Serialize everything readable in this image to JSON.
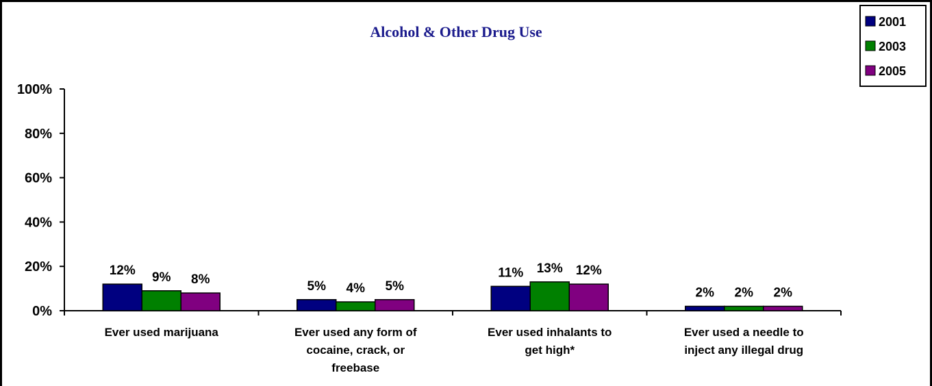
{
  "chart_data": {
    "type": "bar",
    "title": "Alcohol & Other Drug Use",
    "categories": [
      [
        "Ever used marijuana"
      ],
      [
        "Ever used any form of",
        "cocaine, crack, or",
        "freebase"
      ],
      [
        "Ever used inhalants to",
        "get high*"
      ],
      [
        "Ever used a needle to",
        "inject any illegal drug"
      ]
    ],
    "series": [
      {
        "name": "2001",
        "color": "#000080",
        "values": [
          12,
          5,
          11,
          2
        ],
        "labels": [
          "12%",
          "5%",
          "11%",
          "2%"
        ]
      },
      {
        "name": "2003",
        "color": "#008000",
        "values": [
          9,
          4,
          13,
          2
        ],
        "labels": [
          "9%",
          "4%",
          "13%",
          "2%"
        ]
      },
      {
        "name": "2005",
        "color": "#800080",
        "values": [
          8,
          5,
          12,
          2
        ],
        "labels": [
          "8%",
          "5%",
          "12%",
          "2%"
        ]
      }
    ],
    "ylim": [
      0,
      100
    ],
    "yticks": [
      0,
      20,
      40,
      60,
      80,
      100
    ],
    "ytick_labels": [
      "0%",
      "20%",
      "40%",
      "60%",
      "80%",
      "100%"
    ],
    "xlabel": "",
    "ylabel": "",
    "grid": false,
    "legend": "top-right"
  }
}
